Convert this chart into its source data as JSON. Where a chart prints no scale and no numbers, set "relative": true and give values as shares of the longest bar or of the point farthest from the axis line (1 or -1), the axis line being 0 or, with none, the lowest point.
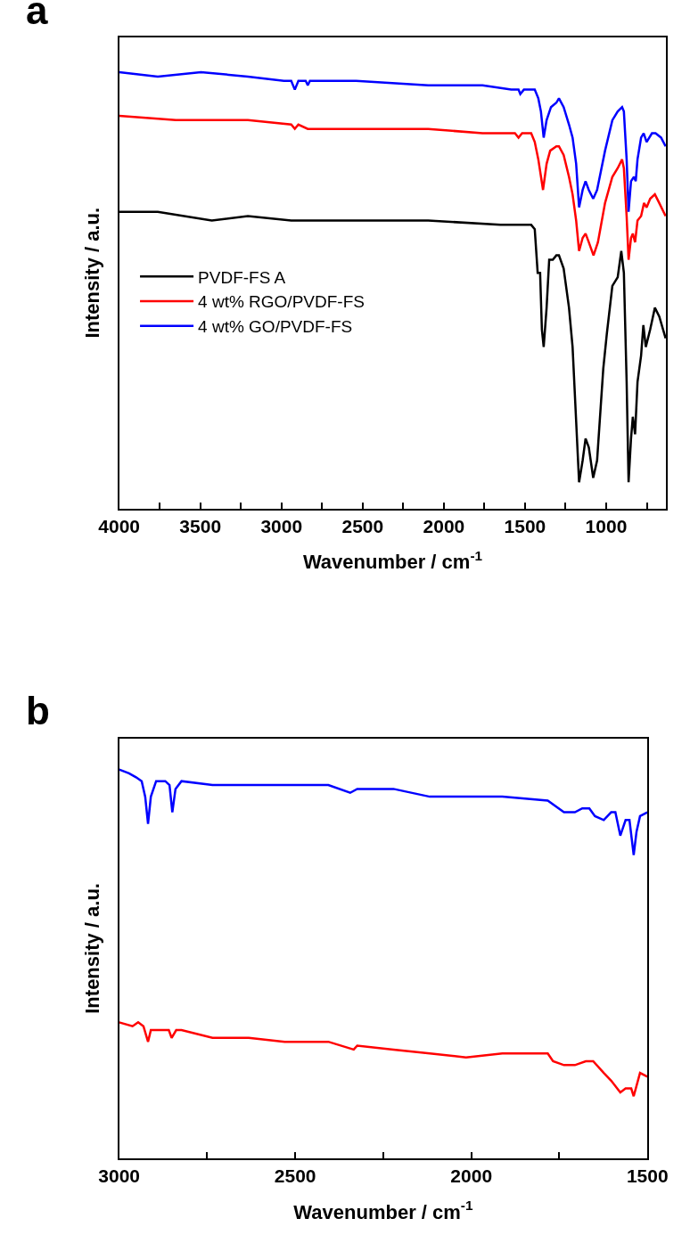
{
  "chart_data": [
    {
      "type": "line",
      "title": "a",
      "xlabel": "Wavenumber / cm$^{-1}$",
      "ylabel": "Intensity / a.u.",
      "relative": true,
      "legend": "bottom left",
      "marker": "none",
      "line_style": "solid",
      "xlim": [
        4000,
        630
      ],
      "xticks": [
        4000,
        {
          "value": 3750,
          "label": null
        },
        3500,
        {
          "value": 3250,
          "label": null
        },
        3000,
        {
          "value": 2750,
          "label": null
        },
        2500,
        {
          "value": 2250,
          "label": null
        },
        2000,
        {
          "value": 1750,
          "label": null
        },
        1500,
        {
          "value": 1250,
          "label": null
        },
        1000,
        {
          "value": 750,
          "label": null
        }
      ],
      "series": [
        {
          "name": "PVDF-FS A",
          "color": "#000000",
          "x": [
            4000,
            3762,
            3429,
            3207,
            2940,
            2540,
            2096,
            1651,
            1540,
            1462,
            1440,
            1422,
            1407,
            1396,
            1385,
            1367,
            1351,
            1329,
            1307,
            1291,
            1262,
            1229,
            1207,
            1185,
            1167,
            1145,
            1127,
            1107,
            1080,
            1056,
            1018,
            996,
            962,
            929,
            907,
            891,
            874,
            862,
            847,
            836,
            822,
            807,
            785,
            771,
            756,
            729,
            700,
            673,
            634
          ],
          "values": [
            0.68,
            0.68,
            0.66,
            0.67,
            0.66,
            0.66,
            0.66,
            0.65,
            0.65,
            0.65,
            0.64,
            0.54,
            0.54,
            0.41,
            0.37,
            0.46,
            0.57,
            0.57,
            0.58,
            0.58,
            0.55,
            0.46,
            0.37,
            0.2,
            0.06,
            0.11,
            0.16,
            0.14,
            0.07,
            0.11,
            0.32,
            0.4,
            0.51,
            0.53,
            0.59,
            0.54,
            0.29,
            0.06,
            0.16,
            0.21,
            0.17,
            0.29,
            0.35,
            0.42,
            0.37,
            0.41,
            0.46,
            0.44,
            0.39
          ]
        },
        {
          "name": "4 wt% RGO/PVDF-FS",
          "color": "#ff0000",
          "x": [
            4000,
            3651,
            3207,
            2940,
            2918,
            2896,
            2838,
            2540,
            2096,
            1762,
            1651,
            1562,
            1540,
            1518,
            1462,
            1440,
            1418,
            1389,
            1367,
            1345,
            1307,
            1291,
            1262,
            1229,
            1207,
            1185,
            1167,
            1145,
            1127,
            1107,
            1078,
            1051,
            1007,
            962,
            929,
            902,
            891,
            874,
            862,
            847,
            836,
            822,
            807,
            785,
            767,
            751,
            729,
            700,
            673,
            634
          ],
          "values": [
            0.9,
            0.89,
            0.89,
            0.88,
            0.87,
            0.88,
            0.87,
            0.87,
            0.87,
            0.86,
            0.86,
            0.86,
            0.85,
            0.86,
            0.86,
            0.84,
            0.8,
            0.73,
            0.79,
            0.82,
            0.83,
            0.83,
            0.81,
            0.76,
            0.72,
            0.66,
            0.59,
            0.62,
            0.63,
            0.61,
            0.58,
            0.61,
            0.7,
            0.76,
            0.78,
            0.8,
            0.78,
            0.67,
            0.57,
            0.62,
            0.63,
            0.61,
            0.66,
            0.67,
            0.7,
            0.69,
            0.71,
            0.72,
            0.7,
            0.67
          ]
        },
        {
          "name": "4 wt% GO/PVDF-FS",
          "color": "#0000ff",
          "x": [
            4000,
            3762,
            3496,
            3207,
            2985,
            2940,
            2918,
            2896,
            2851,
            2838,
            2825,
            2540,
            2096,
            1762,
            1585,
            1562,
            1540,
            1529,
            1507,
            1440,
            1418,
            1402,
            1385,
            1367,
            1340,
            1307,
            1291,
            1262,
            1229,
            1207,
            1185,
            1167,
            1145,
            1127,
            1107,
            1080,
            1056,
            1007,
            962,
            929,
            902,
            891,
            874,
            862,
            847,
            829,
            818,
            807,
            785,
            769,
            751,
            718,
            696,
            662,
            634
          ],
          "values": [
            1.0,
            0.99,
            1.0,
            0.99,
            0.98,
            0.98,
            0.96,
            0.98,
            0.98,
            0.97,
            0.98,
            0.98,
            0.97,
            0.97,
            0.96,
            0.96,
            0.96,
            0.95,
            0.96,
            0.96,
            0.94,
            0.91,
            0.85,
            0.89,
            0.92,
            0.93,
            0.94,
            0.92,
            0.88,
            0.85,
            0.79,
            0.69,
            0.73,
            0.75,
            0.73,
            0.71,
            0.73,
            0.82,
            0.89,
            0.91,
            0.92,
            0.91,
            0.8,
            0.68,
            0.75,
            0.76,
            0.75,
            0.8,
            0.85,
            0.86,
            0.84,
            0.86,
            0.86,
            0.85,
            0.83
          ]
        }
      ]
    },
    {
      "type": "line",
      "title": "b",
      "xlabel": "Wavenumber / cm$^{-1}$",
      "ylabel": "Intensity / a.u.",
      "relative": true,
      "marker": "none",
      "line_style": "solid",
      "xlim": [
        3000,
        1500
      ],
      "xticks": [
        3000,
        {
          "value": 2750,
          "label": null
        },
        2500,
        {
          "value": 2250,
          "label": null
        },
        2000,
        {
          "value": 1750,
          "label": null
        },
        1500
      ],
      "series": [
        {
          "color": "#0000ff",
          "x": [
            3000,
            2972,
            2952,
            2936,
            2926,
            2918,
            2910,
            2895,
            2869,
            2857,
            2849,
            2840,
            2823,
            2735,
            2632,
            2530,
            2406,
            2344,
            2324,
            2221,
            2118,
            2015,
            1912,
            1783,
            1737,
            1706,
            1685,
            1665,
            1649,
            1624,
            1603,
            1591,
            1577,
            1562,
            1551,
            1539,
            1531,
            1521,
            1500
          ],
          "values": [
            1.0,
            0.99,
            0.98,
            0.97,
            0.93,
            0.86,
            0.93,
            0.97,
            0.97,
            0.96,
            0.89,
            0.95,
            0.97,
            0.96,
            0.96,
            0.96,
            0.96,
            0.94,
            0.95,
            0.95,
            0.93,
            0.93,
            0.93,
            0.92,
            0.89,
            0.89,
            0.9,
            0.9,
            0.88,
            0.87,
            0.89,
            0.89,
            0.83,
            0.87,
            0.87,
            0.78,
            0.84,
            0.88,
            0.89
          ]
        },
        {
          "color": "#ff0000",
          "x": [
            3000,
            2962,
            2946,
            2931,
            2918,
            2910,
            2859,
            2851,
            2838,
            2823,
            2735,
            2632,
            2530,
            2406,
            2334,
            2324,
            2221,
            2118,
            2015,
            1912,
            1783,
            1768,
            1737,
            1706,
            1675,
            1654,
            1624,
            1603,
            1577,
            1562,
            1546,
            1539,
            1521,
            1500
          ],
          "values": [
            0.35,
            0.34,
            0.35,
            0.34,
            0.3,
            0.33,
            0.33,
            0.31,
            0.33,
            0.33,
            0.31,
            0.31,
            0.3,
            0.3,
            0.28,
            0.29,
            0.28,
            0.27,
            0.26,
            0.27,
            0.27,
            0.25,
            0.24,
            0.24,
            0.25,
            0.25,
            0.22,
            0.2,
            0.17,
            0.18,
            0.18,
            0.16,
            0.22,
            0.21
          ]
        }
      ]
    }
  ]
}
